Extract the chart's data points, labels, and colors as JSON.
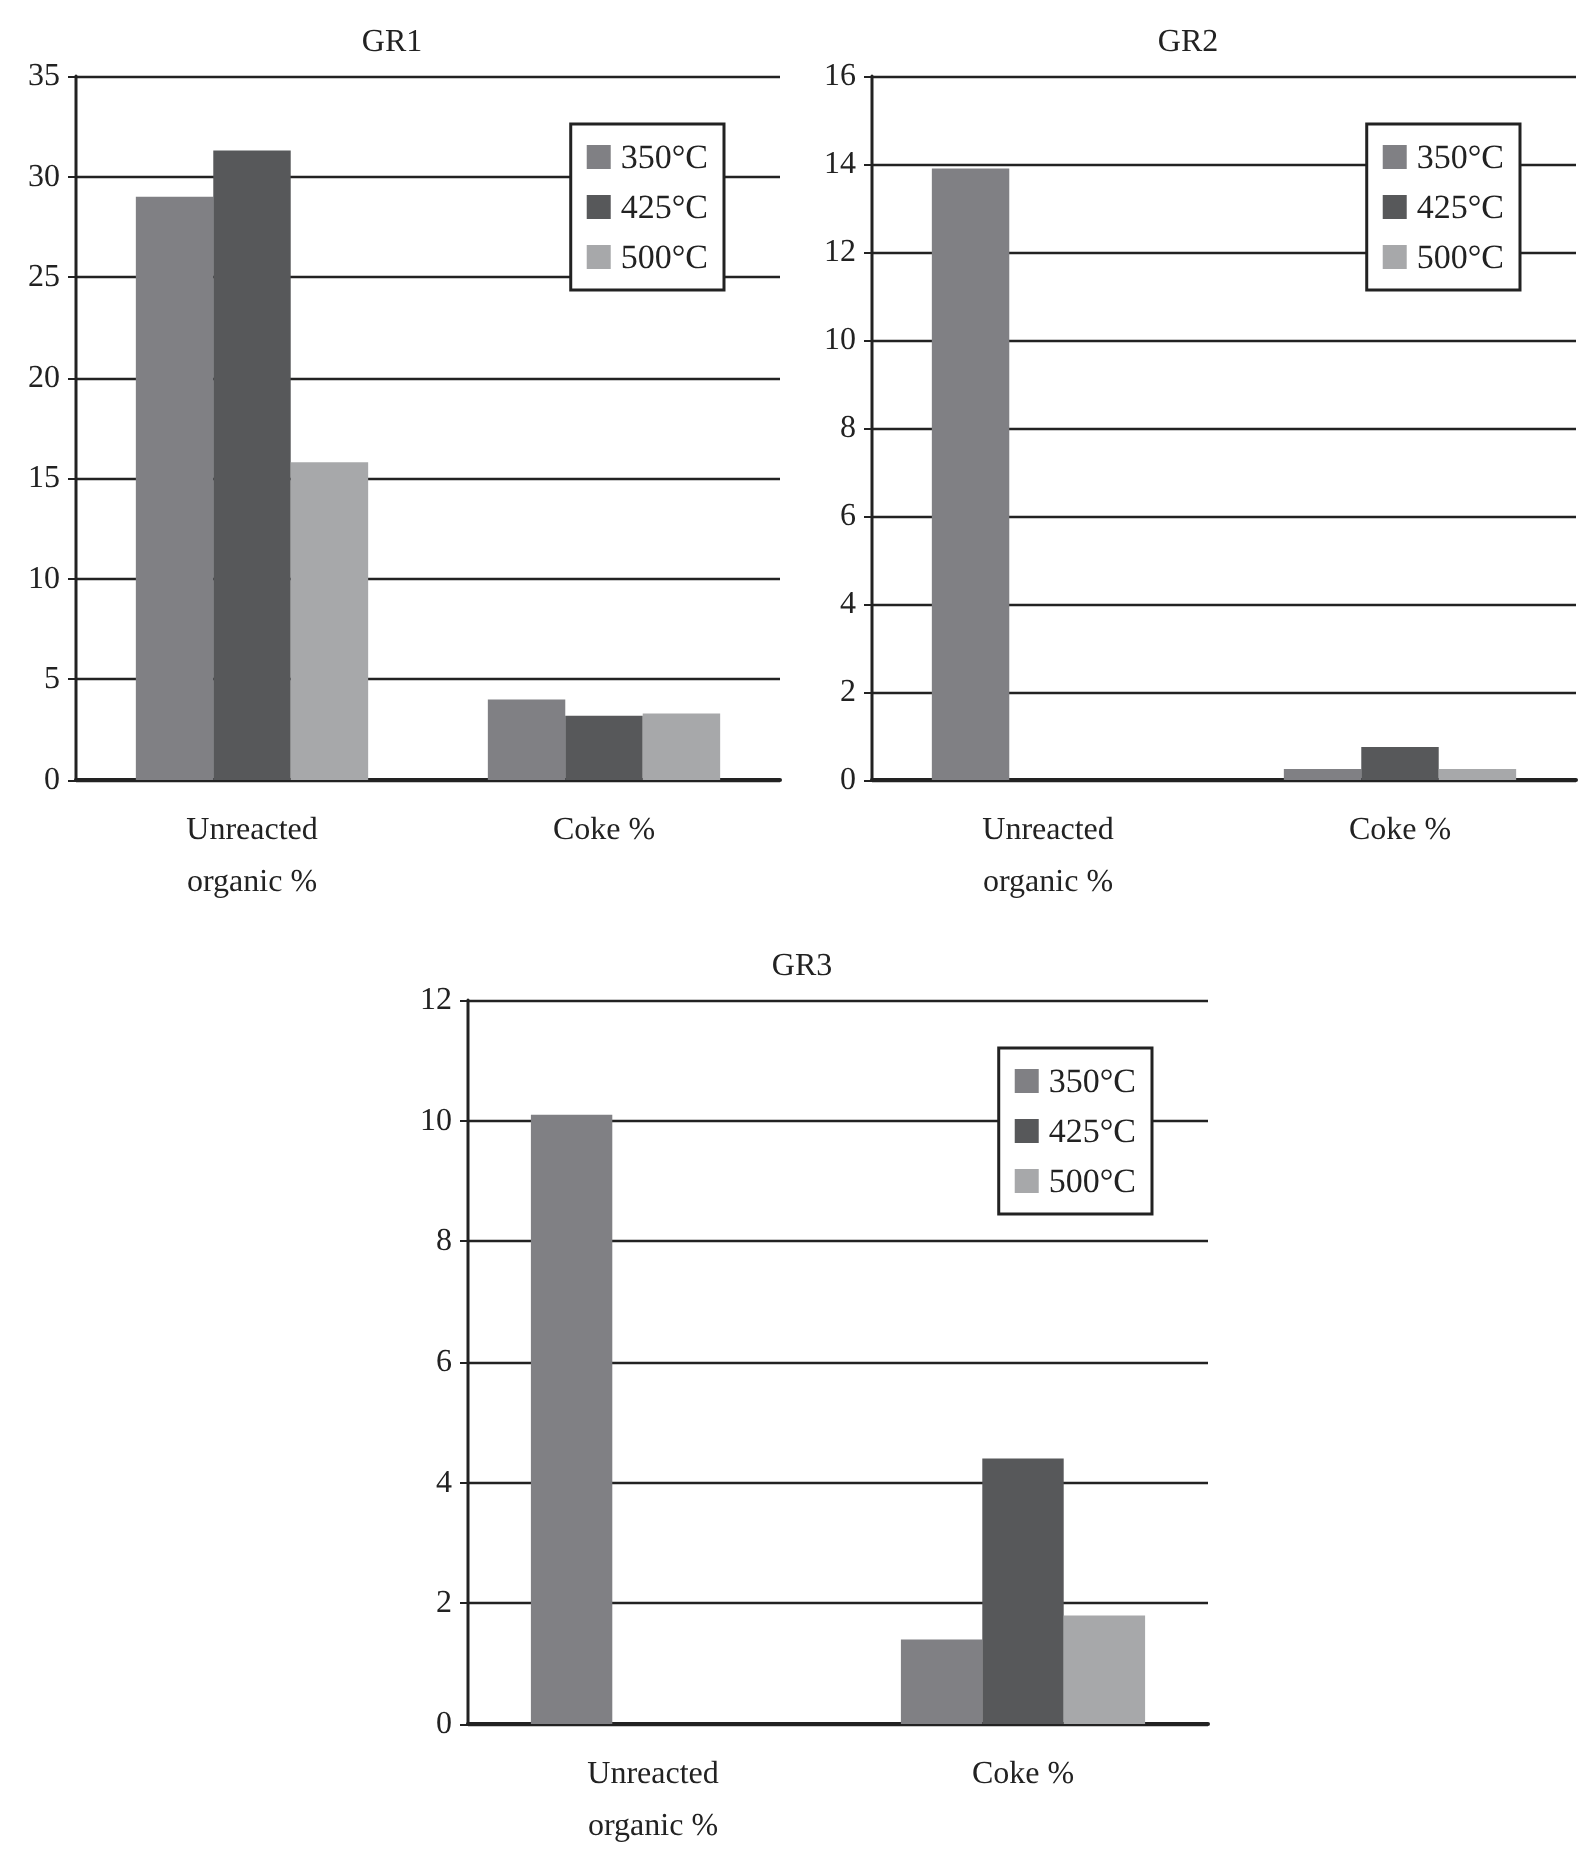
{
  "chart_data": [
    {
      "type": "bar",
      "title": "GR1",
      "categories": [
        "Unreacted\norganic %",
        "Coke %"
      ],
      "series": [
        {
          "name": "350°C",
          "color": "#808084",
          "values": [
            29,
            4.0
          ]
        },
        {
          "name": "425°C",
          "color": "#57585a",
          "values": [
            31.3,
            3.2
          ]
        },
        {
          "name": "500°C",
          "color": "#a7a8aa",
          "values": [
            15.8,
            3.3
          ]
        }
      ],
      "ylim": [
        0,
        35
      ],
      "yticks": [
        0,
        5,
        10,
        15,
        20,
        25,
        30,
        35
      ],
      "grid": "y",
      "legend": "top right"
    },
    {
      "type": "bar",
      "title": "GR2",
      "categories": [
        "Unreacted\norganic %",
        "Coke %"
      ],
      "series": [
        {
          "name": "350°C",
          "color": "#808084",
          "values": [
            13.9,
            0.25
          ]
        },
        {
          "name": "425°C",
          "color": "#57585a",
          "values": [
            0,
            0.75
          ]
        },
        {
          "name": "500°C",
          "color": "#a7a8aa",
          "values": [
            0,
            0.25
          ]
        }
      ],
      "ylim": [
        0,
        16
      ],
      "yticks": [
        0,
        2,
        4,
        6,
        8,
        10,
        12,
        14,
        16
      ],
      "grid": "y",
      "legend": "top right"
    },
    {
      "type": "bar",
      "title": "GR3",
      "categories": [
        "Unreacted\norganic %",
        "Coke %"
      ],
      "series": [
        {
          "name": "350°C",
          "color": "#808084",
          "values": [
            10.1,
            1.4
          ]
        },
        {
          "name": "425°C",
          "color": "#57585a",
          "values": [
            0,
            4.4
          ]
        },
        {
          "name": "500°C",
          "color": "#a7a8aa",
          "values": [
            0,
            1.8
          ]
        }
      ],
      "ylim": [
        0,
        12
      ],
      "yticks": [
        0,
        2,
        4,
        6,
        8,
        10,
        12
      ],
      "grid": "y",
      "legend": "top right"
    }
  ]
}
